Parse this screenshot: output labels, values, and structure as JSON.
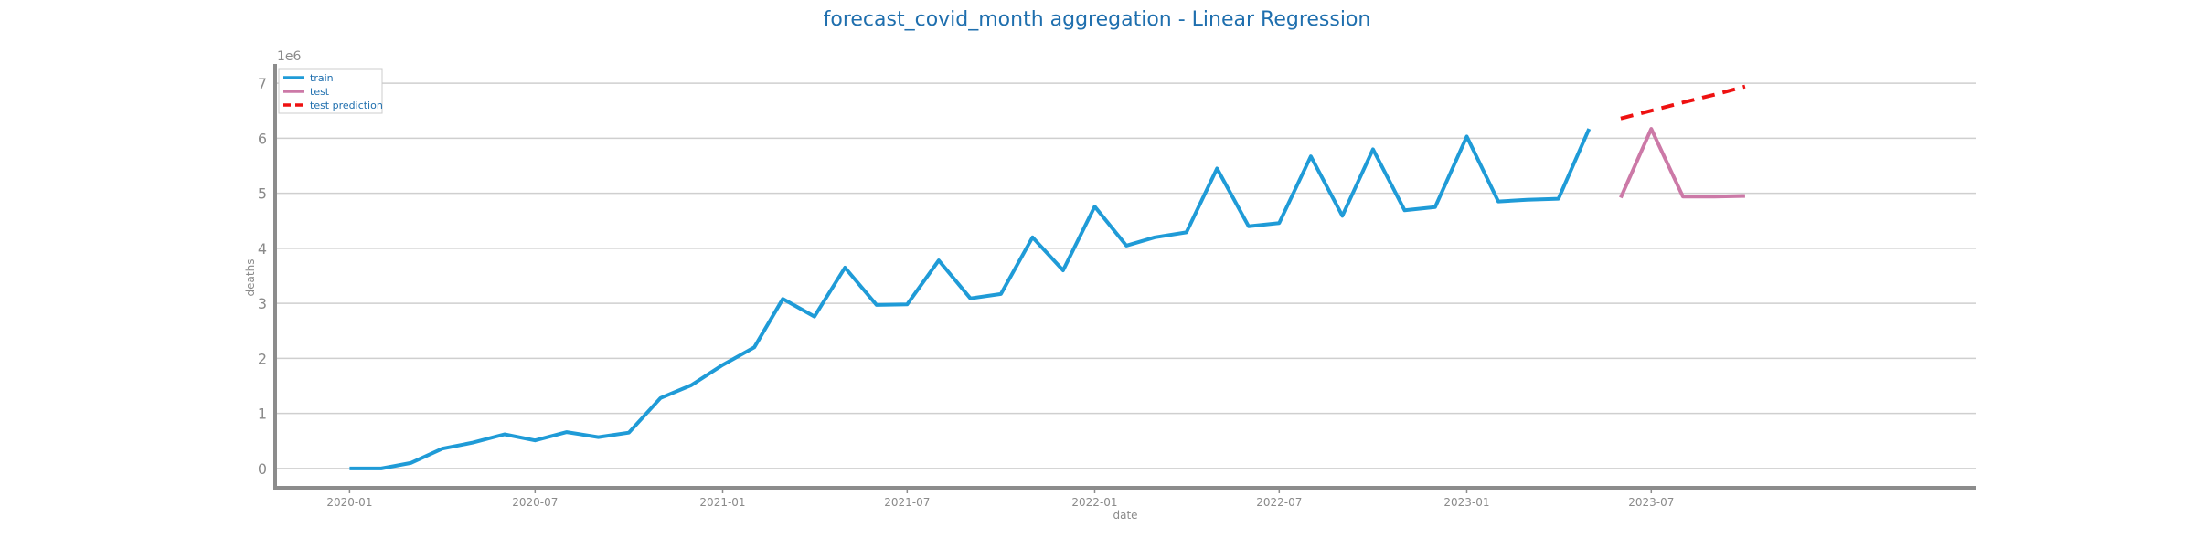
{
  "chart_data": {
    "type": "line",
    "title": "forecast_covid_month aggregation - Linear Regression",
    "xlabel": "date",
    "ylabel": "deaths",
    "y_multiplier_label": "1e6",
    "ylim": [
      -0.35,
      7.35
    ],
    "y_ticks": [
      0,
      1,
      2,
      3,
      4,
      5,
      6,
      7
    ],
    "x_ticks": [
      "2020-01",
      "2020-07",
      "2021-01",
      "2021-07",
      "2022-01",
      "2022-07",
      "2023-01",
      "2023-07"
    ],
    "x_range": [
      "2019-10-20",
      "2024-05-15"
    ],
    "grid": "horizontal",
    "legend_position": "top-left",
    "series": [
      {
        "name": "train",
        "color": "#1f9bd7",
        "style": "solid",
        "x": [
          "2020-01-01",
          "2020-02-01",
          "2020-03-01",
          "2020-04-01",
          "2020-05-01",
          "2020-06-01",
          "2020-07-01",
          "2020-08-01",
          "2020-09-01",
          "2020-10-01",
          "2020-11-01",
          "2020-12-01",
          "2021-01-01",
          "2021-02-01",
          "2021-03-01",
          "2021-04-01",
          "2021-05-01",
          "2021-06-01",
          "2021-07-01",
          "2021-08-01",
          "2021-09-01",
          "2021-10-01",
          "2021-11-01",
          "2021-12-01",
          "2022-01-01",
          "2022-02-01",
          "2022-03-01",
          "2022-04-01",
          "2022-05-01",
          "2022-06-01",
          "2022-07-01",
          "2022-08-01",
          "2022-09-01",
          "2022-10-01",
          "2022-11-01",
          "2022-12-01",
          "2023-01-01",
          "2023-02-01",
          "2023-03-01",
          "2023-04-01",
          "2023-05-01"
        ],
        "values": [
          0.0,
          0.0,
          0.1,
          0.36,
          0.47,
          0.62,
          0.51,
          0.66,
          0.57,
          0.65,
          1.28,
          1.51,
          1.88,
          2.2,
          3.08,
          2.76,
          3.65,
          2.97,
          2.98,
          3.78,
          3.09,
          3.17,
          4.2,
          3.6,
          4.76,
          4.05,
          4.2,
          4.29,
          5.45,
          4.4,
          4.46,
          5.67,
          4.59,
          5.8,
          4.69,
          4.75,
          6.03,
          4.85,
          4.88,
          4.9,
          6.17
        ]
      },
      {
        "name": "test",
        "color": "#cc79a7",
        "style": "solid",
        "x": [
          "2023-06-01",
          "2023-07-01",
          "2023-08-01",
          "2023-09-01",
          "2023-10-01"
        ],
        "values": [
          4.92,
          6.17,
          4.94,
          4.94,
          4.95
        ]
      },
      {
        "name": "test prediction",
        "color": "#ee1111",
        "style": "dashed",
        "x": [
          "2023-06-01",
          "2023-07-01",
          "2023-08-01",
          "2023-09-01",
          "2023-10-01"
        ],
        "values": [
          6.36,
          6.5,
          6.65,
          6.79,
          6.94
        ]
      }
    ]
  }
}
